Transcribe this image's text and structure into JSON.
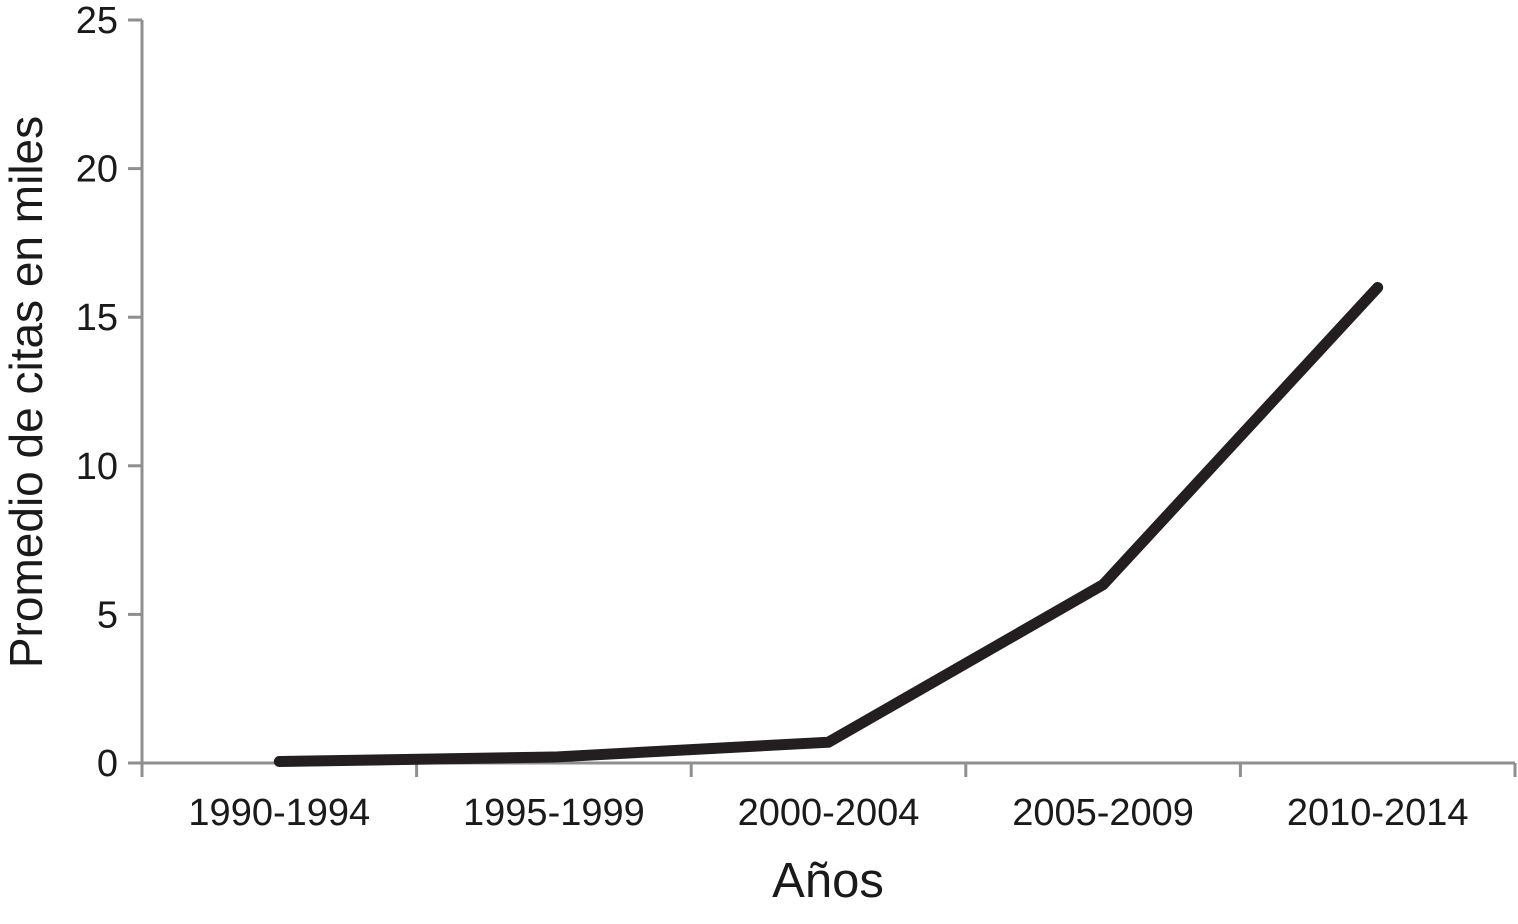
{
  "chart_data": {
    "type": "line",
    "title": "",
    "xlabel": "Años",
    "ylabel": "Promedio de citas en miles",
    "categories": [
      "1990-1994",
      "1995-1999",
      "2000-2004",
      "2005-2009",
      "2010-2014"
    ],
    "series": [
      {
        "name": "Promedio de citas",
        "values": [
          0.05,
          0.2,
          0.7,
          6,
          16
        ]
      }
    ],
    "yticks": [
      0,
      5,
      10,
      15,
      20,
      25
    ],
    "ylim": [
      0,
      25
    ],
    "grid": false,
    "legend_position": "none",
    "colors": {
      "line": "#231f20",
      "axis": "#8f8f8f",
      "text": "#1a1a1a",
      "background": "#ffffff"
    }
  }
}
